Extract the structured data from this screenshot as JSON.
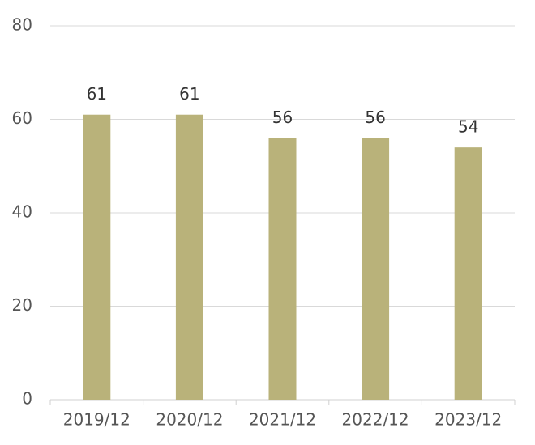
{
  "chart_data": {
    "type": "bar",
    "categories": [
      "2019/12",
      "2020/12",
      "2021/12",
      "2022/12",
      "2023/12"
    ],
    "values": [
      61,
      61,
      56,
      56,
      54
    ],
    "color": "#b9b27a",
    "ylim": [
      0,
      80
    ],
    "yticks": [
      0,
      20,
      40,
      60,
      80
    ],
    "grid": true,
    "data_labels": true
  }
}
